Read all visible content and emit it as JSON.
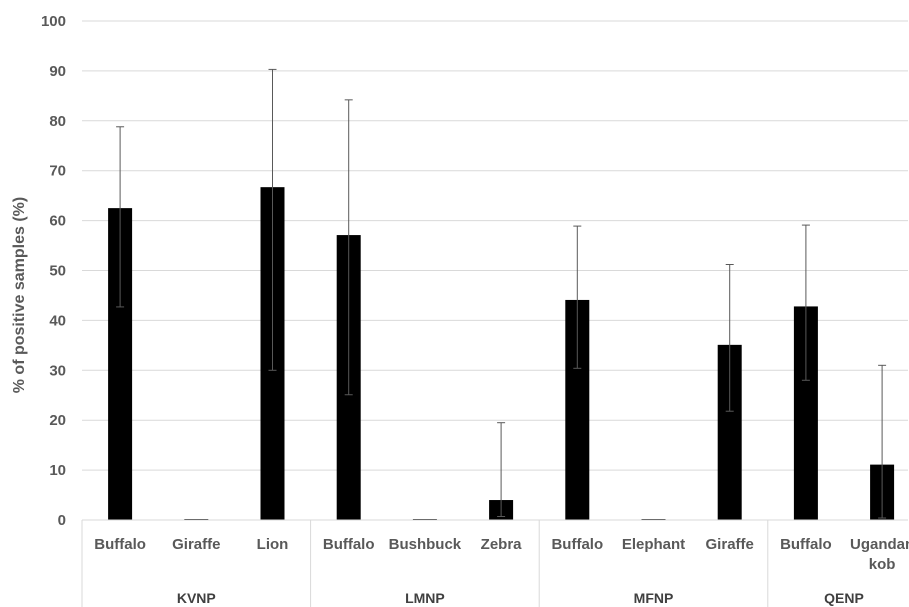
{
  "chart_data": {
    "type": "bar",
    "ylabel": "% of positive samples (%)",
    "xlabel": "",
    "ylim": [
      0,
      100
    ],
    "yticks": [
      0,
      10,
      20,
      30,
      40,
      50,
      60,
      70,
      80,
      90,
      100
    ],
    "grid": true,
    "groups": [
      {
        "name": "KVNP",
        "categories": [
          "Buffalo",
          "Giraffe",
          "Lion"
        ],
        "values": [
          62.5,
          0,
          66.7
        ],
        "err_low": [
          42.7,
          0,
          30.0
        ],
        "err_high": [
          78.8,
          0,
          90.3
        ]
      },
      {
        "name": "LMNP",
        "categories": [
          "Buffalo",
          "Bushbuck",
          "Zebra"
        ],
        "values": [
          57.1,
          0,
          4.0
        ],
        "err_low": [
          25.1,
          0,
          0.7
        ],
        "err_high": [
          84.2,
          0,
          19.5
        ]
      },
      {
        "name": "MFNP",
        "categories": [
          "Buffalo",
          "Elephant",
          "Giraffe"
        ],
        "values": [
          44.1,
          0,
          35.1
        ],
        "err_low": [
          30.4,
          0,
          21.8
        ],
        "err_high": [
          58.9,
          0,
          51.2
        ]
      },
      {
        "name": "QENP",
        "categories": [
          "Buffalo",
          "Ugandan kob"
        ],
        "values": [
          42.8,
          11.1
        ],
        "err_low": [
          28.0,
          0.4
        ],
        "err_high": [
          59.1,
          31.0
        ]
      }
    ],
    "colors": {
      "bar": "#000000",
      "grid": "#d9d9d9",
      "axis": "#d9d9d9",
      "error": "#595959"
    }
  }
}
